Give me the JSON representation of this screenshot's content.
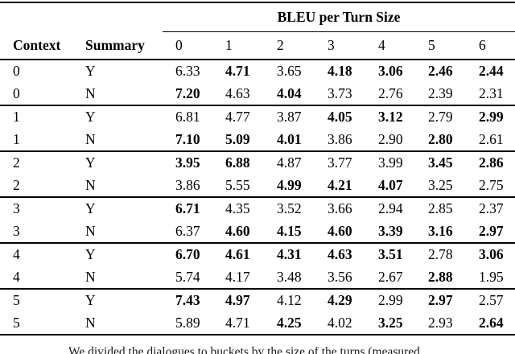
{
  "table": {
    "group_header": "BLEU per Turn Size",
    "columns": [
      "Context",
      "Summary",
      "0",
      "1",
      "2",
      "3",
      "4",
      "5",
      "6"
    ],
    "groups": [
      {
        "context": "0",
        "rows": [
          {
            "summary": "Y",
            "values": [
              {
                "v": "6.33",
                "b": false
              },
              {
                "v": "4.71",
                "b": true
              },
              {
                "v": "3.65",
                "b": false
              },
              {
                "v": "4.18",
                "b": true
              },
              {
                "v": "3.06",
                "b": true
              },
              {
                "v": "2.46",
                "b": true
              },
              {
                "v": "2.44",
                "b": true
              }
            ]
          },
          {
            "summary": "N",
            "values": [
              {
                "v": "7.20",
                "b": true
              },
              {
                "v": "4.63",
                "b": false
              },
              {
                "v": "4.04",
                "b": true
              },
              {
                "v": "3.73",
                "b": false
              },
              {
                "v": "2.76",
                "b": false
              },
              {
                "v": "2.39",
                "b": false
              },
              {
                "v": "2.31",
                "b": false
              }
            ]
          }
        ]
      },
      {
        "context": "1",
        "rows": [
          {
            "summary": "Y",
            "values": [
              {
                "v": "6.81",
                "b": false
              },
              {
                "v": "4.77",
                "b": false
              },
              {
                "v": "3.87",
                "b": false
              },
              {
                "v": "4.05",
                "b": true
              },
              {
                "v": "3.12",
                "b": true
              },
              {
                "v": "2.79",
                "b": false
              },
              {
                "v": "2.99",
                "b": true
              }
            ]
          },
          {
            "summary": "N",
            "values": [
              {
                "v": "7.10",
                "b": true
              },
              {
                "v": "5.09",
                "b": true
              },
              {
                "v": "4.01",
                "b": true
              },
              {
                "v": "3.86",
                "b": false
              },
              {
                "v": "2.90",
                "b": false
              },
              {
                "v": "2.80",
                "b": true
              },
              {
                "v": "2.61",
                "b": false
              }
            ]
          }
        ]
      },
      {
        "context": "2",
        "rows": [
          {
            "summary": "Y",
            "values": [
              {
                "v": "3.95",
                "b": true
              },
              {
                "v": "6.88",
                "b": true
              },
              {
                "v": "4.87",
                "b": false
              },
              {
                "v": "3.77",
                "b": false
              },
              {
                "v": "3.99",
                "b": false
              },
              {
                "v": "3.45",
                "b": true
              },
              {
                "v": "2.86",
                "b": true
              }
            ]
          },
          {
            "summary": "N",
            "values": [
              {
                "v": "3.86",
                "b": false
              },
              {
                "v": "5.55",
                "b": false
              },
              {
                "v": "4.99",
                "b": true
              },
              {
                "v": "4.21",
                "b": true
              },
              {
                "v": "4.07",
                "b": true
              },
              {
                "v": "3.25",
                "b": false
              },
              {
                "v": "2.75",
                "b": false
              }
            ]
          }
        ]
      },
      {
        "context": "3",
        "rows": [
          {
            "summary": "Y",
            "values": [
              {
                "v": "6.71",
                "b": true
              },
              {
                "v": "4.35",
                "b": false
              },
              {
                "v": "3.52",
                "b": false
              },
              {
                "v": "3.66",
                "b": false
              },
              {
                "v": "2.94",
                "b": false
              },
              {
                "v": "2.85",
                "b": false
              },
              {
                "v": "2.37",
                "b": false
              }
            ]
          },
          {
            "summary": "N",
            "values": [
              {
                "v": "6.37",
                "b": false
              },
              {
                "v": "4.60",
                "b": true
              },
              {
                "v": "4.15",
                "b": true
              },
              {
                "v": "4.60",
                "b": true
              },
              {
                "v": "3.39",
                "b": true
              },
              {
                "v": "3.16",
                "b": true
              },
              {
                "v": "2.97",
                "b": true
              }
            ]
          }
        ]
      },
      {
        "context": "4",
        "rows": [
          {
            "summary": "Y",
            "values": [
              {
                "v": "6.70",
                "b": true
              },
              {
                "v": "4.61",
                "b": true
              },
              {
                "v": "4.31",
                "b": true
              },
              {
                "v": "4.63",
                "b": true
              },
              {
                "v": "3.51",
                "b": true
              },
              {
                "v": "2.78",
                "b": false
              },
              {
                "v": "3.06",
                "b": true
              }
            ]
          },
          {
            "summary": "N",
            "values": [
              {
                "v": "5.74",
                "b": false
              },
              {
                "v": "4.17",
                "b": false
              },
              {
                "v": "3.48",
                "b": false
              },
              {
                "v": "3.56",
                "b": false
              },
              {
                "v": "2.67",
                "b": false
              },
              {
                "v": "2.88",
                "b": true
              },
              {
                "v": "1.95",
                "b": false
              }
            ]
          }
        ]
      },
      {
        "context": "5",
        "rows": [
          {
            "summary": "Y",
            "values": [
              {
                "v": "7.43",
                "b": true
              },
              {
                "v": "4.97",
                "b": true
              },
              {
                "v": "4.12",
                "b": false
              },
              {
                "v": "4.29",
                "b": true
              },
              {
                "v": "2.99",
                "b": false
              },
              {
                "v": "2.97",
                "b": true
              },
              {
                "v": "2.57",
                "b": false
              }
            ]
          },
          {
            "summary": "N",
            "values": [
              {
                "v": "5.89",
                "b": false
              },
              {
                "v": "4.71",
                "b": false
              },
              {
                "v": "4.25",
                "b": true
              },
              {
                "v": "4.02",
                "b": false
              },
              {
                "v": "3.25",
                "b": true
              },
              {
                "v": "2.93",
                "b": false
              },
              {
                "v": "2.64",
                "b": true
              }
            ]
          }
        ]
      }
    ]
  },
  "caption": {
    "text": "We divided the dialogues to buckets by the size of the turns (measured"
  },
  "colors": {
    "text": "#000000",
    "background": "#ffffff",
    "rule": "#000000"
  }
}
